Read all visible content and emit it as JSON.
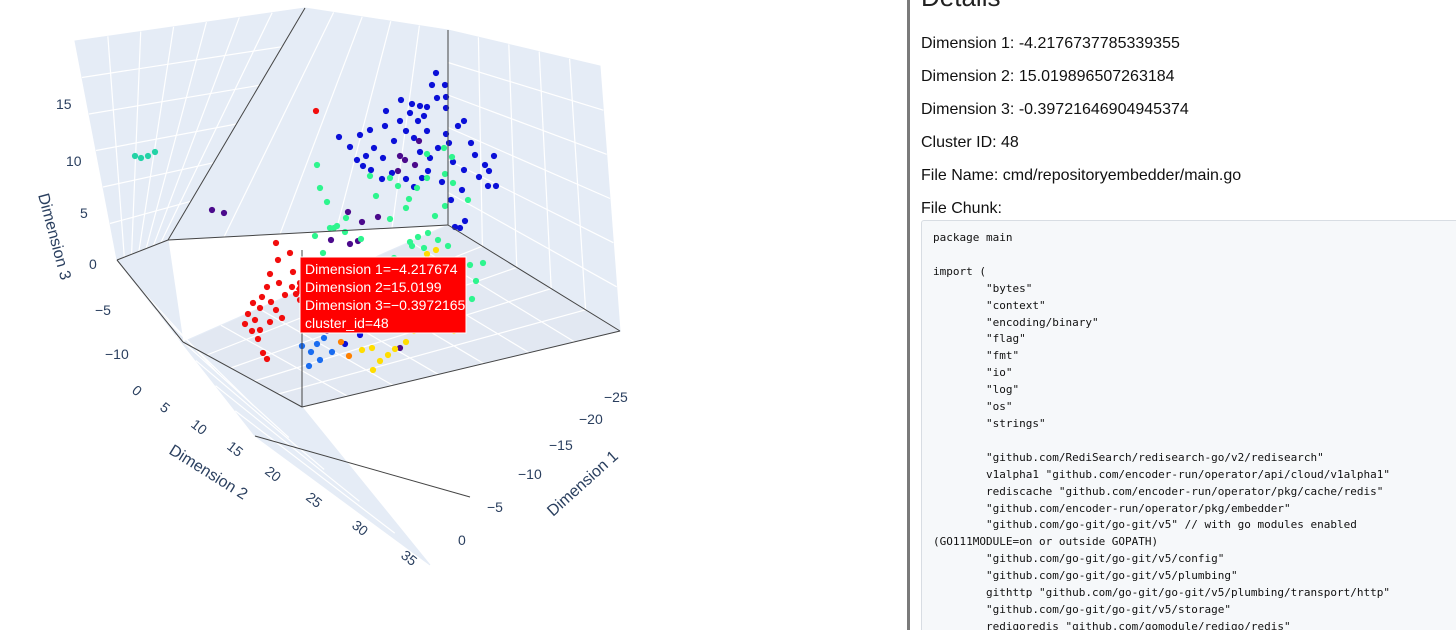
{
  "plot": {
    "axis_titles": {
      "x": "Dimension 1",
      "y": "Dimension 2",
      "z": "Dimension 3"
    },
    "x_ticks": [
      "0",
      "−5",
      "−10",
      "−15",
      "−20",
      "−25"
    ],
    "y_ticks": [
      "0",
      "5",
      "10",
      "15",
      "20",
      "25",
      "30",
      "35"
    ],
    "z_ticks": [
      "15",
      "10",
      "5",
      "0",
      "−5",
      "−10"
    ],
    "hover": {
      "lines": [
        "Dimension 1=−4.217674",
        "Dimension 2=15.0199",
        "Dimension 3=−0.3972165",
        "cluster_id=48"
      ],
      "bg_color": "#ff0000"
    },
    "marker_colors": {
      "navy": "#0b10d8",
      "purple": "#4b0a8c",
      "green": "#2ef58e",
      "teal": "#23d3a6",
      "red": "#f20d0d",
      "orange": "#ff8000",
      "yellow": "#ffdd00",
      "blue": "#1a6cf0"
    }
  },
  "details": {
    "title": "Details",
    "dimension1": "Dimension 1: -4.2176737785339355",
    "dimension2": "Dimension 2: 15.019896507263184",
    "dimension3": "Dimension 3: -0.39721646904945374",
    "cluster_id": "Cluster ID: 48",
    "file_name": "File Name: cmd/repositoryembedder/main.go",
    "file_chunk_label": "File Chunk:",
    "file_chunk": "package main\n\nimport (\n        \"bytes\"\n        \"context\"\n        \"encoding/binary\"\n        \"flag\"\n        \"fmt\"\n        \"io\"\n        \"log\"\n        \"os\"\n        \"strings\"\n\n        \"github.com/RediSearch/redisearch-go/v2/redisearch\"\n        v1alpha1 \"github.com/encoder-run/operator/api/cloud/v1alpha1\"\n        rediscache \"github.com/encoder-run/operator/pkg/cache/redis\"\n        \"github.com/encoder-run/operator/pkg/embedder\"\n        \"github.com/go-git/go-git/v5\" // with go modules enabled (GO111MODULE=on or outside GOPATH)\n        \"github.com/go-git/go-git/v5/config\"\n        \"github.com/go-git/go-git/v5/plumbing\"\n        githttp \"github.com/go-git/go-git/v5/plumbing/transport/http\"\n        \"github.com/go-git/go-git/v5/storage\"\n        redigoredis \"github.com/gomodule/redigo/redis\""
  }
}
